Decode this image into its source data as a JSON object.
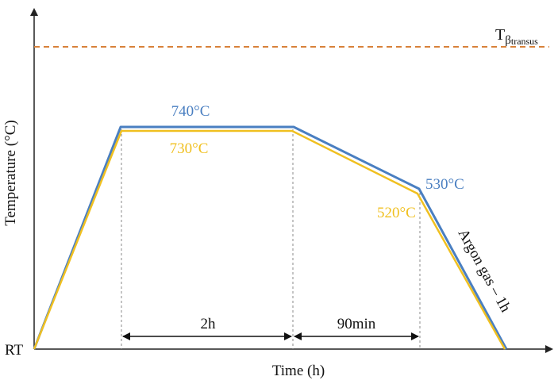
{
  "axes": {
    "y_label": "Temperature (°C)",
    "x_label": "Time (h)",
    "origin_label": "RT"
  },
  "transus": {
    "label_main": "T",
    "label_sub_beta": "β",
    "label_sub": "transus",
    "color": "#d8813a"
  },
  "profiles": [
    {
      "name": "upper",
      "color": "#4a7fc1",
      "hold_label": "740°C",
      "end_label": "530°C"
    },
    {
      "name": "lower",
      "color": "#f0c020",
      "hold_label": "730°C",
      "end_label": "520°C"
    }
  ],
  "intervals": {
    "hold": "2h",
    "cooling": "90min"
  },
  "quench_label": "Argon gas – 1h"
}
